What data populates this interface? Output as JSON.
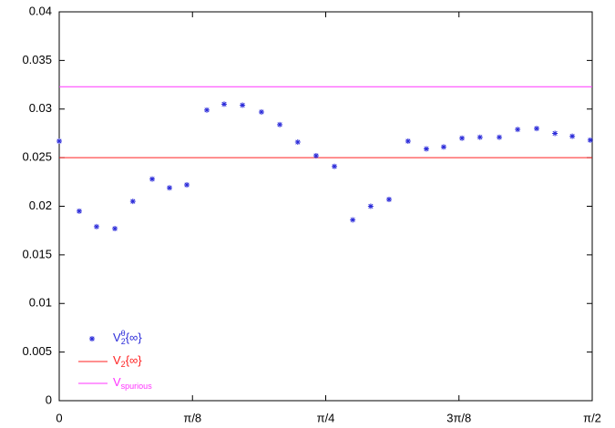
{
  "chart_data": {
    "type": "scatter",
    "xlim": [
      0,
      1.5708
    ],
    "ylim": [
      0,
      0.04
    ],
    "xticks": [
      0,
      {
        "value": 0.3927,
        "label": "π/8"
      },
      {
        "value": 0.7854,
        "label": "π/4"
      },
      {
        "value": 1.1781,
        "label": "3π/8"
      },
      {
        "value": 1.5708,
        "label": "π/2"
      }
    ],
    "yticks": [
      0,
      0.005,
      0.01,
      0.015,
      0.02,
      0.025,
      0.03,
      0.035,
      0.04
    ],
    "legend": "lower left",
    "series": [
      {
        "name": "V",
        "name_sub": "2",
        "name_sup": "θ",
        "name_suffix": "{∞}",
        "color": "#2b2bd9",
        "x": [
          0,
          0.059,
          0.11,
          0.164,
          0.217,
          0.274,
          0.325,
          0.376,
          0.435,
          0.486,
          0.54,
          0.596,
          0.65,
          0.703,
          0.757,
          0.811,
          0.865,
          0.918,
          0.972,
          1.028,
          1.082,
          1.133,
          1.187,
          1.24,
          1.297,
          1.351,
          1.407,
          1.461,
          1.512,
          1.565
        ],
        "values": [
          0.0267,
          0.0195,
          0.0179,
          0.0177,
          0.0205,
          0.0228,
          0.0219,
          0.0222,
          0.0299,
          0.0305,
          0.0304,
          0.0297,
          0.0284,
          0.0266,
          0.0252,
          0.0241,
          0.0186,
          0.02,
          0.0207,
          0.0267,
          0.0259,
          0.0261,
          0.027,
          0.0271,
          0.0271,
          0.0279,
          0.028,
          0.0275,
          0.0272,
          0.0268
        ]
      }
    ],
    "hlines": [
      {
        "name": "V",
        "name_sub": "2",
        "name_suffix": "{∞}",
        "color": "#ff2020",
        "value": 0.025
      },
      {
        "name": "V",
        "name_sub": "spurious",
        "color": "#ff33ff",
        "value": 0.0323
      }
    ]
  }
}
